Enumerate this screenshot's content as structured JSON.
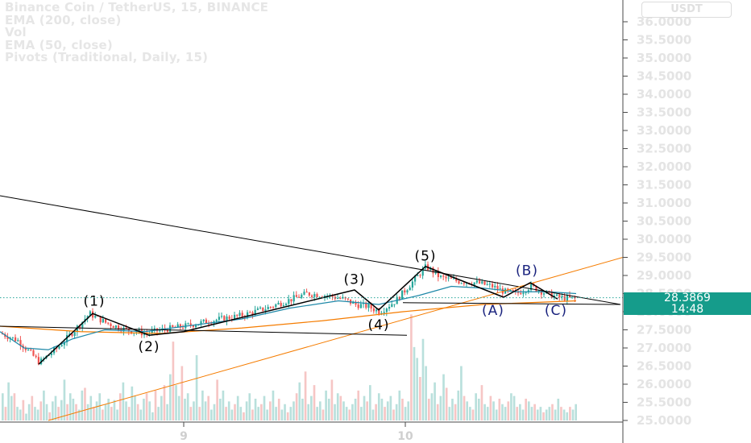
{
  "header": {
    "symbol_line": "Binance Coin / TetherUS, 15, BINANCE",
    "indicators": [
      "EMA (200, close)",
      "Vol",
      "EMA (50, close)",
      "Pivots (Traditional, Daily, 15)"
    ],
    "currency_button": "USDT"
  },
  "price_axis": {
    "ticks": [
      "36.0000",
      "35.5000",
      "35.0000",
      "34.5000",
      "34.0000",
      "33.5000",
      "33.0000",
      "32.5000",
      "32.0000",
      "31.5000",
      "31.0000",
      "30.5000",
      "30.0000",
      "29.5000",
      "29.0000",
      "28.5000",
      "28.0000",
      "27.5000",
      "27.0000",
      "26.5000",
      "26.0000",
      "25.5000",
      "25.0000"
    ],
    "last_price": "28.3869",
    "countdown": "14:48"
  },
  "time_axis": {
    "ticks": [
      "9",
      "10"
    ]
  },
  "colors": {
    "up": "#26a69a",
    "down": "#ef5350",
    "ema50": "#1e88a8",
    "ema200": "#f57c00",
    "trendline": "#000000",
    "label": "#000000",
    "label_corrective": "#1a237e",
    "price_tag": "#159c8b"
  },
  "chart_data": {
    "type": "candlestick",
    "title": "Binance Coin / TetherUS, 15, BINANCE",
    "ylim": [
      25.0,
      36.3
    ],
    "y_ticks": [
      36.0,
      35.5,
      35.0,
      34.5,
      34.0,
      33.5,
      33.0,
      32.5,
      32.0,
      31.5,
      31.0,
      30.5,
      30.0,
      29.5,
      29.0,
      28.5,
      28.0,
      27.5,
      27.0,
      26.5,
      26.0,
      25.5,
      25.0
    ],
    "last_price": 28.3869,
    "x_range": [
      0,
      773
    ],
    "time_ticks": [
      {
        "label": "9",
        "t": 228
      },
      {
        "label": "10",
        "t": 503
      }
    ],
    "price_path": [
      [
        0,
        27.4
      ],
      [
        22,
        27.2
      ],
      [
        48,
        26.6
      ],
      [
        70,
        27.0
      ],
      [
        92,
        27.5
      ],
      [
        110,
        27.95
      ],
      [
        130,
        27.7
      ],
      [
        155,
        27.5
      ],
      [
        180,
        27.4
      ],
      [
        200,
        27.5
      ],
      [
        228,
        27.6
      ],
      [
        260,
        27.75
      ],
      [
        300,
        27.9
      ],
      [
        330,
        28.1
      ],
      [
        355,
        28.3
      ],
      [
        380,
        28.5
      ],
      [
        405,
        28.45
      ],
      [
        425,
        28.35
      ],
      [
        440,
        28.2
      ],
      [
        455,
        28.15
      ],
      [
        470,
        28.0
      ],
      [
        490,
        28.3
      ],
      [
        510,
        28.8
      ],
      [
        528,
        29.25
      ],
      [
        545,
        28.95
      ],
      [
        565,
        28.85
      ],
      [
        590,
        28.8
      ],
      [
        610,
        28.7
      ],
      [
        625,
        28.55
      ],
      [
        640,
        28.5
      ],
      [
        658,
        28.7
      ],
      [
        672,
        28.55
      ],
      [
        690,
        28.4
      ],
      [
        715,
        28.35
      ]
    ],
    "ema50": [
      [
        0,
        27.45
      ],
      [
        30,
        27.0
      ],
      [
        60,
        26.95
      ],
      [
        90,
        27.25
      ],
      [
        130,
        27.5
      ],
      [
        180,
        27.45
      ],
      [
        230,
        27.6
      ],
      [
        300,
        27.8
      ],
      [
        360,
        28.1
      ],
      [
        420,
        28.3
      ],
      [
        470,
        28.2
      ],
      [
        520,
        28.45
      ],
      [
        560,
        28.7
      ],
      [
        600,
        28.65
      ],
      [
        640,
        28.55
      ],
      [
        680,
        28.55
      ],
      [
        715,
        28.5
      ]
    ],
    "ema200": [
      [
        0,
        27.6
      ],
      [
        100,
        27.45
      ],
      [
        200,
        27.4
      ],
      [
        300,
        27.55
      ],
      [
        400,
        27.75
      ],
      [
        500,
        28.0
      ],
      [
        600,
        28.2
      ],
      [
        715,
        28.3
      ]
    ],
    "volume": {
      "max": 80,
      "values_note": "relative heights",
      "series": [
        20,
        10,
        28,
        18,
        20,
        10,
        8,
        15,
        5,
        12,
        18,
        10,
        8,
        14,
        22,
        12,
        6,
        14,
        18,
        10,
        15,
        30,
        12,
        20,
        16,
        12,
        8,
        22,
        24,
        12,
        18,
        10,
        14,
        20,
        8,
        12,
        16,
        10,
        15,
        8,
        20,
        28,
        14,
        10,
        25,
        18,
        12,
        8,
        16,
        20,
        14,
        6,
        22,
        10,
        18,
        26,
        12,
        34,
        58,
        26,
        18,
        40,
        16,
        20,
        10,
        14,
        48,
        10,
        22,
        14,
        18,
        8,
        12,
        30,
        16,
        22,
        10,
        14,
        8,
        12,
        18,
        10,
        6,
        14,
        20,
        8,
        16,
        10,
        12,
        18,
        8,
        14,
        22,
        10,
        16,
        8,
        12,
        6,
        10,
        14,
        20,
        28,
        16,
        36,
        12,
        18,
        26,
        10,
        14,
        8,
        22,
        16,
        30,
        12,
        20,
        18,
        14,
        10,
        8,
        12,
        16,
        22,
        10,
        18,
        14,
        26,
        8,
        12,
        20,
        16,
        10,
        14,
        18,
        8,
        12,
        22,
        16,
        10,
        14,
        78,
        54,
        46,
        32,
        60,
        40,
        16,
        20,
        28,
        12,
        18,
        34,
        24,
        10,
        16,
        12,
        22,
        40,
        18,
        14,
        10,
        8,
        20,
        16,
        26,
        12,
        10,
        18,
        14,
        8,
        16,
        12,
        10,
        14,
        20,
        18,
        10,
        12,
        8,
        16,
        14,
        10,
        12,
        8,
        10,
        6,
        8,
        10,
        12,
        8,
        16,
        10,
        8,
        6,
        10,
        8,
        12
      ]
    },
    "trendlines": [
      {
        "name": "descending",
        "points": [
          [
            0,
            31.2
          ],
          [
            770,
            28.2
          ]
        ]
      },
      {
        "name": "ascending",
        "points": [
          [
            60,
            25.0
          ],
          [
            773,
            29.5
          ]
        ]
      },
      {
        "name": "support-upper",
        "points": [
          [
            0,
            27.6
          ],
          [
            505,
            27.35
          ]
        ]
      },
      {
        "name": "support-right",
        "points": [
          [
            500,
            28.25
          ],
          [
            770,
            28.2
          ]
        ]
      }
    ],
    "waves": [
      {
        "path": [
          [
            48,
            26.55
          ],
          [
            115,
            27.95
          ],
          [
            185,
            27.35
          ],
          [
            228,
            27.45
          ],
          [
            440,
            28.6
          ],
          [
            470,
            28.05
          ],
          [
            528,
            29.25
          ]
        ]
      },
      {
        "path": [
          [
            528,
            29.25
          ],
          [
            625,
            28.4
          ],
          [
            658,
            28.8
          ],
          [
            692,
            28.35
          ]
        ]
      }
    ],
    "wave_labels": [
      {
        "text": "(1)",
        "t": 117,
        "price": 28.3,
        "corrective": false
      },
      {
        "text": "(2)",
        "t": 185,
        "price": 27.05,
        "corrective": false
      },
      {
        "text": "(3)",
        "t": 440,
        "price": 28.9,
        "corrective": false
      },
      {
        "text": "(4)",
        "t": 470,
        "price": 27.65,
        "corrective": false
      },
      {
        "text": "(5)",
        "t": 528,
        "price": 29.55,
        "corrective": false
      },
      {
        "text": "(A)",
        "t": 612,
        "price": 28.05,
        "corrective": true
      },
      {
        "text": "(B)",
        "t": 654,
        "price": 29.15,
        "corrective": true
      },
      {
        "text": "(C)",
        "t": 690,
        "price": 28.05,
        "corrective": true
      }
    ]
  }
}
